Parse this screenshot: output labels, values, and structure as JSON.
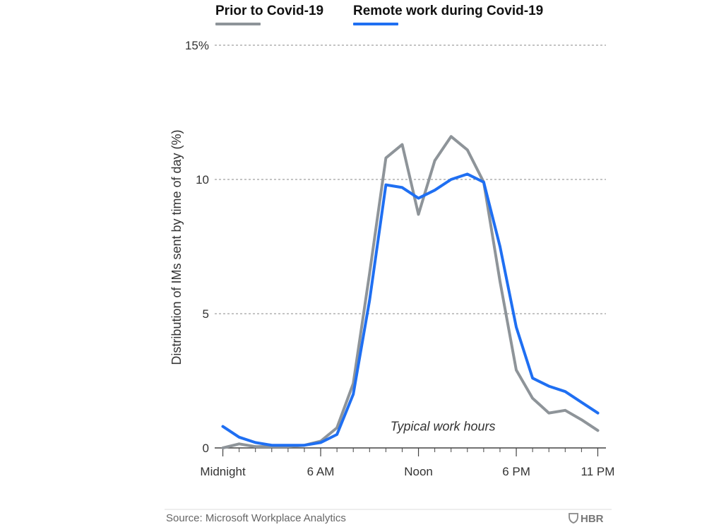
{
  "chart_data": {
    "type": "line",
    "ylabel": "Distribution of IMs sent by time of day (%)",
    "xlabel": "",
    "ylim": [
      0,
      15
    ],
    "yticks": [
      {
        "value": 0,
        "label": "0"
      },
      {
        "value": 5,
        "label": "5"
      },
      {
        "value": 10,
        "label": "10"
      },
      {
        "value": 15,
        "label": "15%"
      }
    ],
    "xlim": [
      -0.5,
      23.5
    ],
    "xticks": [
      {
        "value": 0,
        "label": "Midnight"
      },
      {
        "value": 6,
        "label": "6 AM"
      },
      {
        "value": 12,
        "label": "Noon"
      },
      {
        "value": 18,
        "label": "6 PM"
      },
      {
        "value": 23,
        "label": "11 PM"
      }
    ],
    "grid": true,
    "legend_position": "top",
    "x": [
      0,
      1,
      2,
      3,
      4,
      5,
      6,
      7,
      8,
      9,
      10,
      11,
      12,
      13,
      14,
      15,
      16,
      17,
      18,
      19,
      20,
      21,
      22,
      23
    ],
    "series": [
      {
        "name": "Prior to Covid-19",
        "color": "#8e9499",
        "values": [
          0.0,
          0.15,
          0.05,
          0.05,
          0.05,
          0.1,
          0.25,
          0.75,
          2.4,
          6.5,
          10.8,
          11.3,
          8.7,
          10.7,
          11.6,
          11.1,
          9.9,
          6.2,
          2.9,
          1.85,
          1.3,
          1.4,
          1.05,
          0.65
        ]
      },
      {
        "name": "Remote work during Covid-19",
        "color": "#1f6ff2",
        "values": [
          0.8,
          0.4,
          0.2,
          0.1,
          0.1,
          0.1,
          0.2,
          0.5,
          2.0,
          5.5,
          9.8,
          9.7,
          9.3,
          9.6,
          10.0,
          10.2,
          9.9,
          7.5,
          4.5,
          2.6,
          2.3,
          2.1,
          1.7,
          1.3
        ]
      }
    ],
    "annotation": {
      "text": "Typical work hours",
      "x": 13.5,
      "y": 0.8
    }
  },
  "footer": {
    "source": "Source: Microsoft Workplace Analytics",
    "brand": "HBR"
  },
  "colors": {
    "grid": "#8a8a8a",
    "axis": "#444444"
  }
}
